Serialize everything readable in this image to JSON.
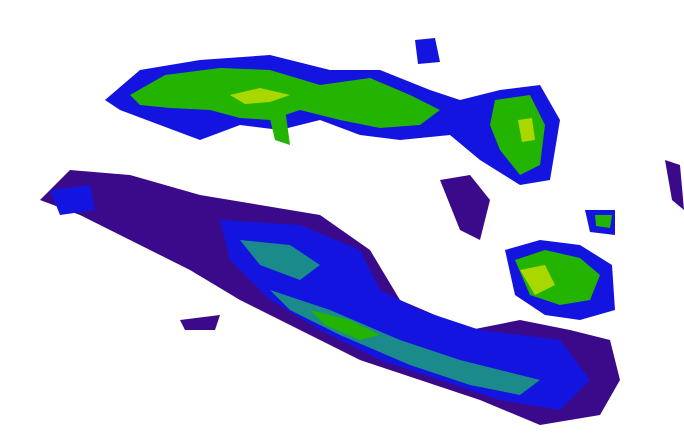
{
  "radar": {
    "palette": {
      "weak": "#3a0a8a",
      "light": "#1414e0",
      "moderate": "#1a8a8a",
      "strong": "#22b400",
      "heavy": "#a8d800"
    }
  }
}
